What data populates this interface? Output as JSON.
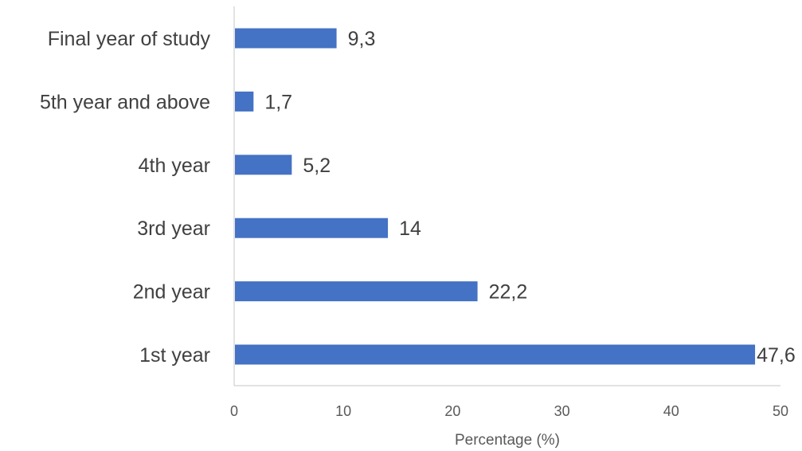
{
  "chart_data": {
    "type": "bar",
    "orientation": "horizontal",
    "categories": [
      "Final year of study",
      "5th year and above",
      "4th year",
      "3rd year",
      "2nd year",
      "1st year"
    ],
    "values": [
      9.3,
      1.7,
      5.2,
      14,
      22.2,
      47.6
    ],
    "data_labels": [
      "9,3",
      "1,7",
      "5,2",
      "14",
      "22,2",
      "47,6"
    ],
    "xlabel": "Percentage (%)",
    "ylabel": "",
    "xlim": [
      0,
      50
    ],
    "x_ticks": [
      0,
      10,
      20,
      30,
      40,
      50
    ],
    "bar_color": "#4472C4",
    "axis_color": "#D9D9D9",
    "grid": false
  }
}
